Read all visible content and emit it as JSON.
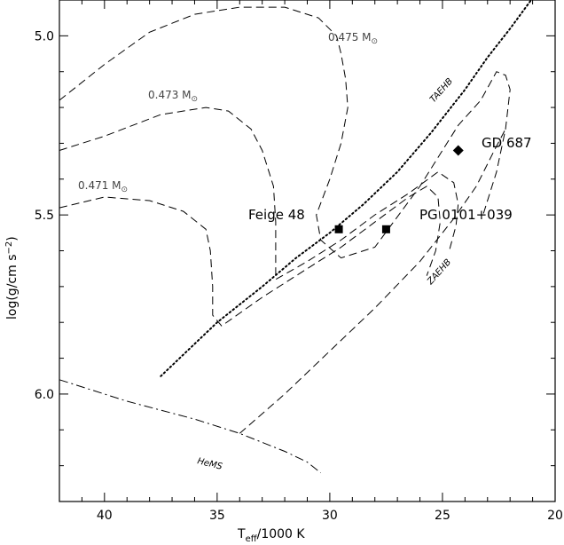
{
  "chart_data": {
    "type": "scatter",
    "xlabel_main": "T",
    "xlabel_sub": "eff",
    "xlabel_rest": "/1000 K",
    "ylabel": "log(g/cm s",
    "ylabel_sup": "−2",
    "ylabel_end": ")",
    "xlim": [
      42,
      20
    ],
    "ylim": [
      6.3,
      4.9
    ],
    "x_ticks": [
      40,
      35,
      30,
      25,
      20
    ],
    "y_ticks": [
      5.0,
      5.5,
      6.0
    ],
    "x_tick_labels": [
      "40",
      "35",
      "30",
      "25",
      "20"
    ],
    "y_tick_labels": [
      "5.0",
      "5.5",
      "6.0"
    ],
    "points": [
      {
        "name": "Feige 48",
        "x": 29.6,
        "y": 5.54,
        "marker": "square"
      },
      {
        "name": "PG 0101+039",
        "x": 27.5,
        "y": 5.54,
        "marker": "square"
      },
      {
        "name": "GD 687",
        "x": 24.3,
        "y": 5.32,
        "marker": "diamond"
      }
    ],
    "curves": {
      "TAEHB": {
        "label": "TAEHB",
        "style": "dotted",
        "x": [
          37.5,
          35,
          33,
          31.5,
          30,
          28.5,
          27,
          25.5,
          24,
          23,
          22,
          21.3,
          20.6
        ],
        "y": [
          5.95,
          5.8,
          5.7,
          5.62,
          5.55,
          5.47,
          5.38,
          5.27,
          5.15,
          5.06,
          4.98,
          4.92,
          4.86
        ]
      },
      "ZAEHB": {
        "label": "ZAEHB",
        "style": "dashed",
        "x": [
          34,
          32,
          30,
          28,
          26,
          24.5,
          23.5,
          22.7,
          22.2
        ],
        "y": [
          6.11,
          6.0,
          5.88,
          5.76,
          5.63,
          5.51,
          5.42,
          5.32,
          5.26
        ]
      },
      "HeMS": {
        "label": "HeMS",
        "style": "dashdot",
        "x": [
          42,
          39,
          36,
          34,
          32,
          31,
          30.4
        ],
        "y": [
          5.96,
          6.02,
          6.07,
          6.11,
          6.16,
          6.19,
          6.22
        ]
      },
      "track_0471": {
        "label": "0.471 M",
        "style": "dashed",
        "x": [
          42,
          40,
          38,
          36.5,
          35.5,
          35.3,
          35.2,
          35.2,
          34.8,
          33,
          31.5,
          30.5,
          29.5,
          28,
          26.5,
          25.7,
          25.2,
          25.1,
          25.3,
          25.7
        ],
        "y": [
          5.48,
          5.45,
          5.46,
          5.49,
          5.54,
          5.6,
          5.7,
          5.78,
          5.81,
          5.73,
          5.67,
          5.63,
          5.59,
          5.52,
          5.45,
          5.42,
          5.45,
          5.52,
          5.6,
          5.67
        ]
      },
      "track_0473": {
        "label": "0.473 M",
        "style": "dashed",
        "x": [
          42,
          40,
          37.5,
          35.5,
          34.5,
          33.5,
          33,
          32.5,
          32.4,
          32.4,
          32.4,
          31,
          29.5,
          28,
          26.5,
          25.2,
          24.5,
          24.3,
          24.4,
          24.7
        ],
        "y": [
          5.32,
          5.28,
          5.22,
          5.2,
          5.21,
          5.26,
          5.32,
          5.42,
          5.52,
          5.63,
          5.68,
          5.63,
          5.57,
          5.5,
          5.44,
          5.38,
          5.41,
          5.47,
          5.53,
          5.6
        ]
      },
      "track_0475": {
        "label": "0.475 M",
        "style": "dashed",
        "x": [
          42,
          40,
          38,
          36,
          34,
          32,
          30.5,
          29.7,
          29.5,
          29.3,
          29.2,
          29.5,
          30,
          30.6,
          30.4,
          29.5,
          28,
          26,
          24.3,
          23.3,
          22.6,
          22.2,
          22.0,
          22.2,
          22.6,
          23.2
        ],
        "y": [
          5.18,
          5.08,
          4.99,
          4.94,
          4.92,
          4.92,
          4.95,
          5.0,
          5.05,
          5.12,
          5.2,
          5.3,
          5.4,
          5.5,
          5.57,
          5.62,
          5.59,
          5.42,
          5.25,
          5.18,
          5.1,
          5.11,
          5.15,
          5.26,
          5.38,
          5.5
        ]
      }
    },
    "labels": {
      "feige48": "Feige 48",
      "pg0101": "PG 0101+039",
      "gd687": "GD 687",
      "taehb": "TAEHB",
      "zaehb": "ZAEHB",
      "hems": "HeMS",
      "m0471": "0.471 M",
      "m0473": "0.473 M",
      "m0475": "0.475 M",
      "sun_symbol": "⊙"
    }
  }
}
